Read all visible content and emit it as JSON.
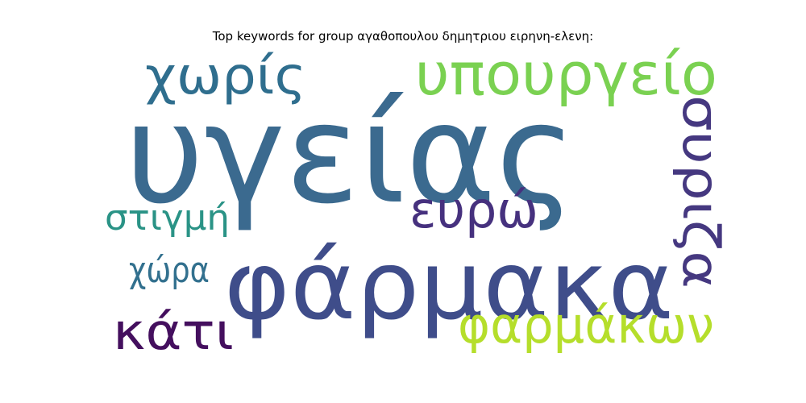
{
  "chart_data": {
    "type": "wordcloud",
    "title": "Top keywords for group αγαθοπουλου δημητριου ειρηνη-ελενη:",
    "words": [
      {
        "text": "υγείας",
        "weight": 1.0,
        "color": "#3b6a8f"
      },
      {
        "text": "φάρμακα",
        "weight": 0.78,
        "color": "#3f4d8a"
      },
      {
        "text": "υπουργείο",
        "weight": 0.42,
        "color": "#7ad151"
      },
      {
        "text": "χωρίς",
        "weight": 0.42,
        "color": "#2f6e8e"
      },
      {
        "text": "φαρμάκων",
        "weight": 0.42,
        "color": "#b5de2b"
      },
      {
        "text": "κάτι",
        "weight": 0.42,
        "color": "#440f5e"
      },
      {
        "text": "ευρώ",
        "weight": 0.42,
        "color": "#46317e"
      },
      {
        "text": "συριζα",
        "weight": 0.42,
        "color": "#453880"
      },
      {
        "text": "στιγμή",
        "weight": 0.3,
        "color": "#2a9386"
      },
      {
        "text": "χώρα",
        "weight": 0.3,
        "color": "#32708e"
      }
    ]
  }
}
